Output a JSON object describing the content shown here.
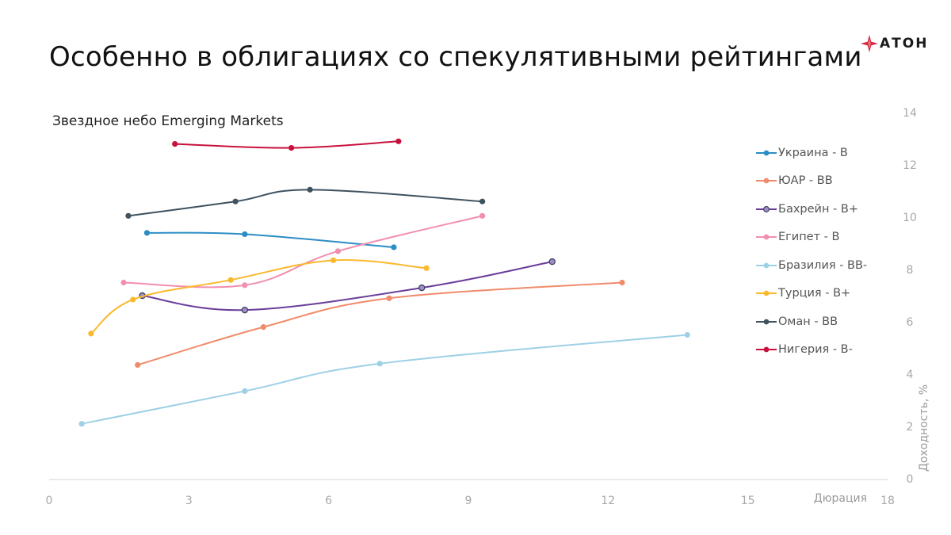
{
  "header": {
    "title": "Особенно в облигациях со спекулятивными рейтингами",
    "logo_text": "АТОН"
  },
  "colors": {
    "logo_red": "#d8243a"
  },
  "chart_data": {
    "type": "line",
    "subtitle": "Звездное небо Emerging Markets",
    "xlabel": "Дюрация",
    "ylabel": "Доходность, %",
    "xlim": [
      0,
      18
    ],
    "ylim": [
      0,
      14
    ],
    "xticks": [
      0,
      3,
      6,
      9,
      12,
      15,
      18
    ],
    "yticks": [
      0,
      2,
      4,
      6,
      8,
      10,
      12,
      14
    ],
    "grid": false,
    "legend_position": "right",
    "series": [
      {
        "name": "Украина - B",
        "color": "#2b8dc4",
        "marker": "solid",
        "points": [
          [
            2.1,
            9.4
          ],
          [
            4.2,
            9.35
          ],
          [
            7.4,
            8.85
          ]
        ]
      },
      {
        "name": "ЮАР - BB",
        "color": "#f08b6b",
        "marker": "solid",
        "points": [
          [
            1.9,
            4.35
          ],
          [
            4.6,
            5.8
          ],
          [
            7.3,
            6.9
          ],
          [
            12.3,
            7.5
          ]
        ]
      },
      {
        "name": "Бахрейн - B+",
        "color": "#6a3d9a",
        "marker": "hollow",
        "points": [
          [
            2.0,
            7.0
          ],
          [
            4.2,
            6.45
          ],
          [
            8.0,
            7.3
          ],
          [
            10.8,
            8.3
          ]
        ]
      },
      {
        "name": "Египет - B",
        "color": "#f28fb0",
        "marker": "solid",
        "points": [
          [
            1.6,
            7.5
          ],
          [
            4.2,
            7.4
          ],
          [
            6.2,
            8.7
          ],
          [
            9.3,
            10.05
          ]
        ]
      },
      {
        "name": "Бразилия - BB-",
        "color": "#9ed0e6",
        "marker": "solid",
        "points": [
          [
            0.7,
            2.1
          ],
          [
            4.2,
            3.35
          ],
          [
            7.1,
            4.4
          ],
          [
            13.7,
            5.5
          ]
        ]
      },
      {
        "name": "Турция - B+",
        "color": "#f9b92e",
        "marker": "solid",
        "points": [
          [
            0.9,
            5.55
          ],
          [
            1.8,
            6.85
          ],
          [
            3.9,
            7.6
          ],
          [
            6.1,
            8.35
          ],
          [
            8.1,
            8.05
          ]
        ]
      },
      {
        "name": "Оман - BB",
        "color": "#3f5260",
        "marker": "solid",
        "points": [
          [
            1.7,
            10.05
          ],
          [
            4.0,
            10.6
          ],
          [
            5.6,
            11.05
          ],
          [
            9.3,
            10.6
          ]
        ]
      },
      {
        "name": "Нигерия - B-",
        "color": "#c8103d",
        "marker": "solid",
        "points": [
          [
            2.7,
            12.8
          ],
          [
            5.2,
            12.65
          ],
          [
            7.5,
            12.9
          ]
        ]
      }
    ]
  }
}
